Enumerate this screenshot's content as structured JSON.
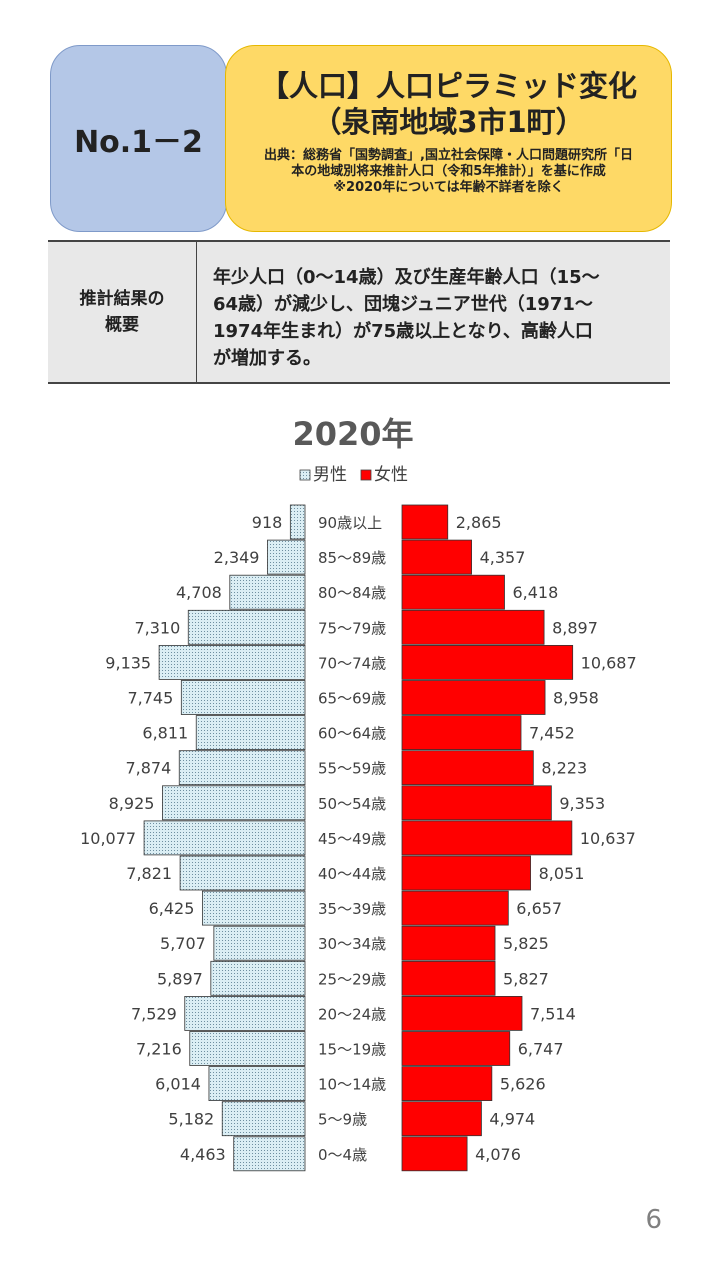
{
  "header": {
    "badge": "No.1－2",
    "title_line1": "【人口】人口ピラミッド変化",
    "title_line2": "（泉南地域3市1町）",
    "source_line1": "出典：総務省「国勢調査」,国立社会保障・人口問題研究所「日",
    "source_line2": "本の地域別将来推計人口（令和5年推計）」を基に作成",
    "source_line3": "※2020年については年齢不詳者を除く"
  },
  "summary": {
    "heading_line1": "推計結果の",
    "heading_line2": "概要",
    "body_line1": "年少人口（0～14歳）及び生産年齢人口（15～",
    "body_line2": "64歳）が減少し、団塊ジュニア世代（1971～",
    "body_line3": "1974年生まれ）が75歳以上となり、高齢人口",
    "body_line4": "が増加する。"
  },
  "page_number": "6",
  "colors": {
    "male": "#dbeef4",
    "female": "#ff0000",
    "badge": "#b4c7e7",
    "title_box": "#fed966"
  },
  "chart_data": {
    "type": "bar",
    "title": "2020年",
    "legend": [
      "男性",
      "女性"
    ],
    "legend_position": "top",
    "categories": [
      "90歳以上",
      "85～89歳",
      "80～84歳",
      "75～79歳",
      "70～74歳",
      "65～69歳",
      "60～64歳",
      "55～59歳",
      "50～54歳",
      "45～49歳",
      "40～44歳",
      "35～39歳",
      "30～34歳",
      "25～29歳",
      "20～24歳",
      "15～19歳",
      "10～14歳",
      "5～9歳",
      "0～4歳"
    ],
    "series": [
      {
        "name": "男性",
        "values": [
          918,
          2349,
          4708,
          7310,
          9135,
          7745,
          6811,
          7874,
          8925,
          10077,
          7821,
          6425,
          5707,
          5897,
          7529,
          7216,
          6014,
          5182,
          4463
        ],
        "labels": [
          "918",
          "2,349",
          "4,708",
          "7,310",
          "9,135",
          "7,745",
          "6,811",
          "7,874",
          "8,925",
          "10,077",
          "7,821",
          "6,425",
          "5,707",
          "5,897",
          "7,529",
          "7,216",
          "6,014",
          "5,182",
          "4,463"
        ]
      },
      {
        "name": "女性",
        "values": [
          2865,
          4357,
          6418,
          8897,
          10687,
          8958,
          7452,
          8223,
          9353,
          10637,
          8051,
          6657,
          5825,
          5827,
          7514,
          6747,
          5626,
          4974,
          4076
        ],
        "labels": [
          "2,865",
          "4,357",
          "6,418",
          "8,897",
          "10,687",
          "8,958",
          "7,452",
          "8,223",
          "9,353",
          "10,637",
          "8,051",
          "6,657",
          "5,825",
          "5,827",
          "7,514",
          "6,747",
          "5,626",
          "4,974",
          "4,076"
        ]
      }
    ]
  }
}
